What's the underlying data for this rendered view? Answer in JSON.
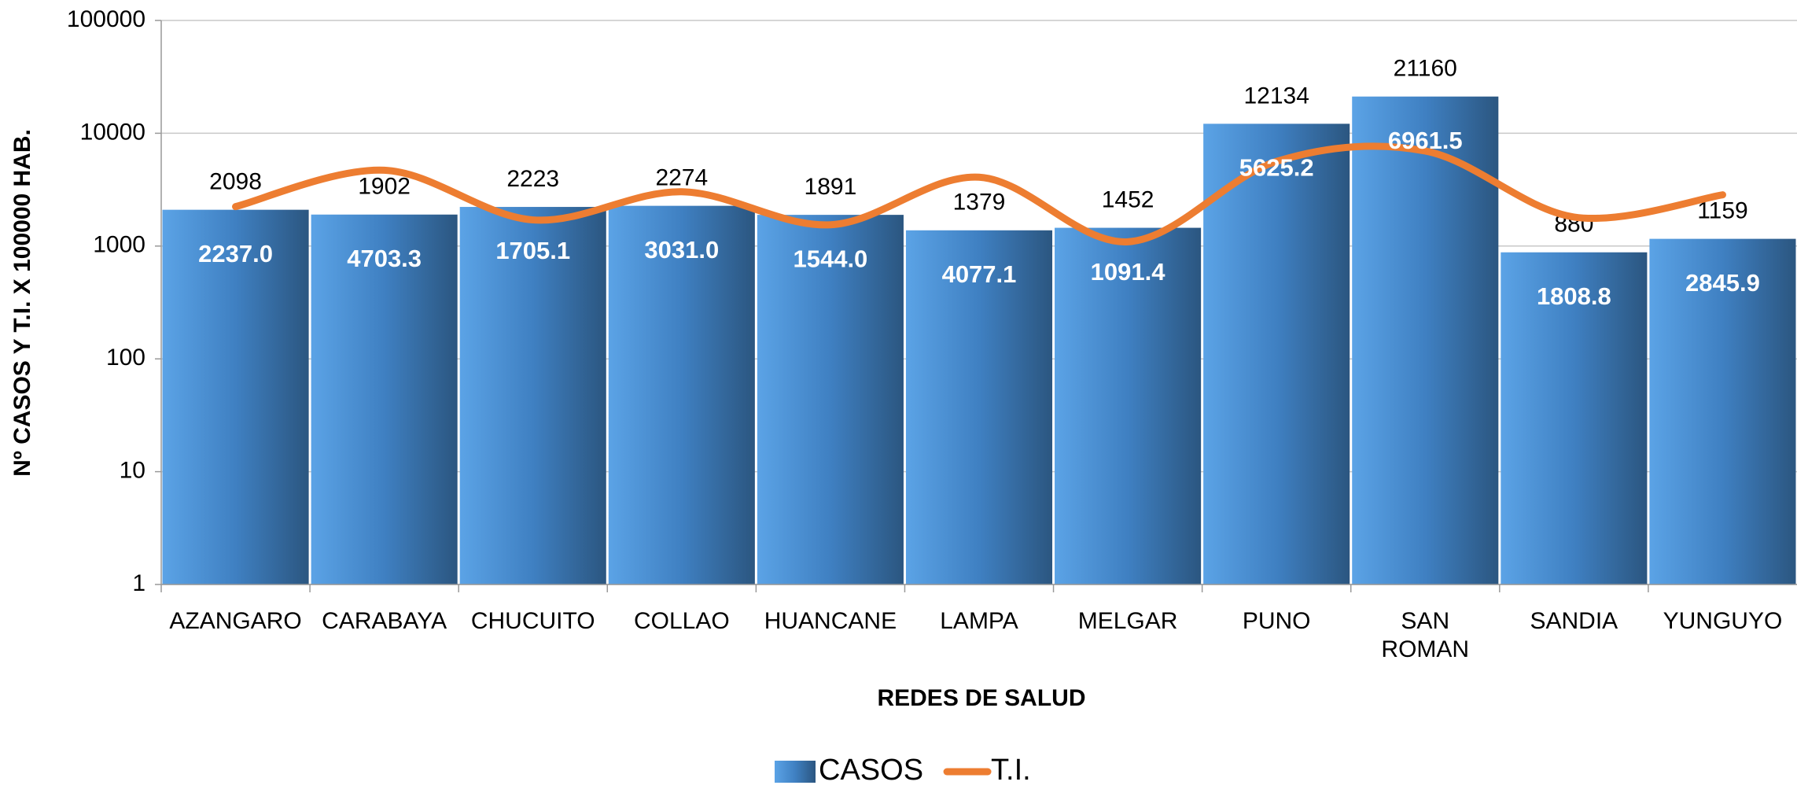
{
  "chart_data": {
    "type": "bar_line",
    "x_label": "REDES DE SALUD",
    "y_label": "Nº CASOS Y T.I. X 100000 HAB.",
    "categories": [
      "AZANGARO",
      "CARABAYA",
      "CHUCUITO",
      "COLLAO",
      "HUANCANE",
      "LAMPA",
      "MELGAR",
      "PUNO",
      "SAN ROMAN",
      "SANDIA",
      "YUNGUYO"
    ],
    "series": [
      {
        "name": "CASOS",
        "type": "bar",
        "color": "#3f7fc0",
        "values": [
          2098,
          1902,
          2223,
          2274,
          1891,
          1379,
          1452,
          12134,
          21160,
          880,
          1159
        ]
      },
      {
        "name": "T.I.",
        "type": "line",
        "color": "#ed7d31",
        "values": [
          2237.0,
          4703.3,
          1705.1,
          3031.0,
          1544.0,
          4077.1,
          1091.4,
          5625.2,
          6961.5,
          1808.8,
          2845.9
        ],
        "value_labels": [
          "2237.0",
          "4703.3",
          "1705.1",
          "3031.0",
          "1544.0",
          "4077.1",
          "1091.4",
          "5625.2",
          "6961.5",
          "1808.8",
          "2845.9"
        ]
      }
    ],
    "ylim": [
      1,
      100000
    ],
    "yticks": [
      1,
      10,
      100,
      1000,
      10000,
      100000
    ],
    "log_scale": true,
    "grid": true,
    "legend": "bottom"
  }
}
